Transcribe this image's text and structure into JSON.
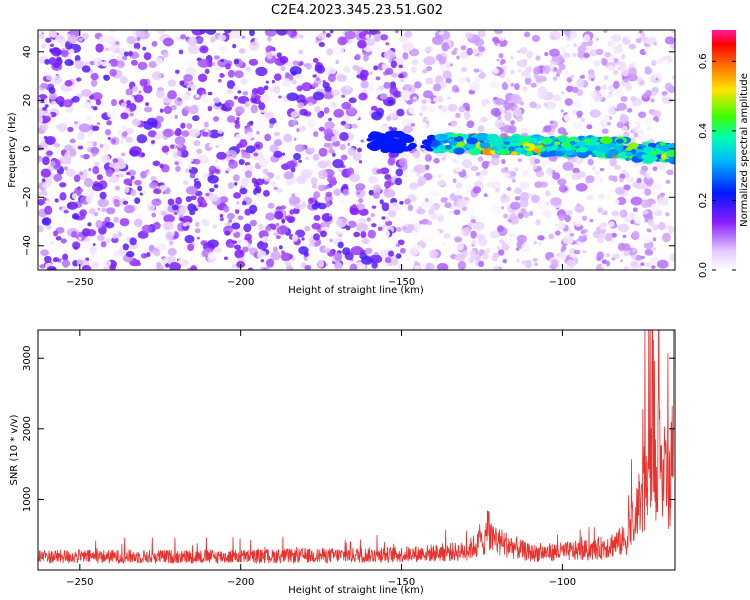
{
  "title": "C2E4.2023.345.23.51.G02",
  "chart_data": [
    {
      "type": "heatmap",
      "xlabel": "Height of straight line (km)",
      "ylabel": "Frequency (Hz)",
      "xlim": [
        -263,
        -65
      ],
      "ylim": [
        -50,
        49
      ],
      "xticks": [
        -250,
        -200,
        -150,
        -100
      ],
      "yticks": [
        -40,
        -20,
        0,
        20,
        40
      ],
      "colorbar": {
        "label": "Normalized spectral amplitude",
        "range": [
          0.0,
          0.69
        ],
        "ticks": [
          0.0,
          0.2,
          0.4,
          0.6
        ]
      },
      "signal_band": {
        "x_from": -160,
        "x_to": -65,
        "frequency_center": [
          3,
          0
        ],
        "peak_amplitude": 0.6
      }
    },
    {
      "type": "line",
      "xlabel": "Height of straight line (km)",
      "ylabel": "SNR (10 * v/v)",
      "xlim": [
        -263,
        -65
      ],
      "ylim": [
        0,
        3400
      ],
      "xticks": [
        -250,
        -200,
        -150,
        -100
      ],
      "yticks": [
        1000,
        2000,
        3000
      ],
      "color": "#e8302c",
      "baseline_snr": [
        [
          -263,
          200
        ],
        [
          -200,
          200
        ],
        [
          -150,
          230
        ],
        [
          -130,
          280
        ],
        [
          -123,
          480
        ],
        [
          -110,
          250
        ],
        [
          -90,
          300
        ],
        [
          -80,
          450
        ],
        [
          -72,
          1500
        ],
        [
          -65,
          1200
        ]
      ],
      "spikes": [
        [
          -123,
          850
        ],
        [
          -73,
          1700
        ],
        [
          -70,
          2580
        ],
        [
          -68,
          2100
        ],
        [
          -66,
          2450
        ],
        [
          -65,
          3350
        ]
      ]
    }
  ]
}
